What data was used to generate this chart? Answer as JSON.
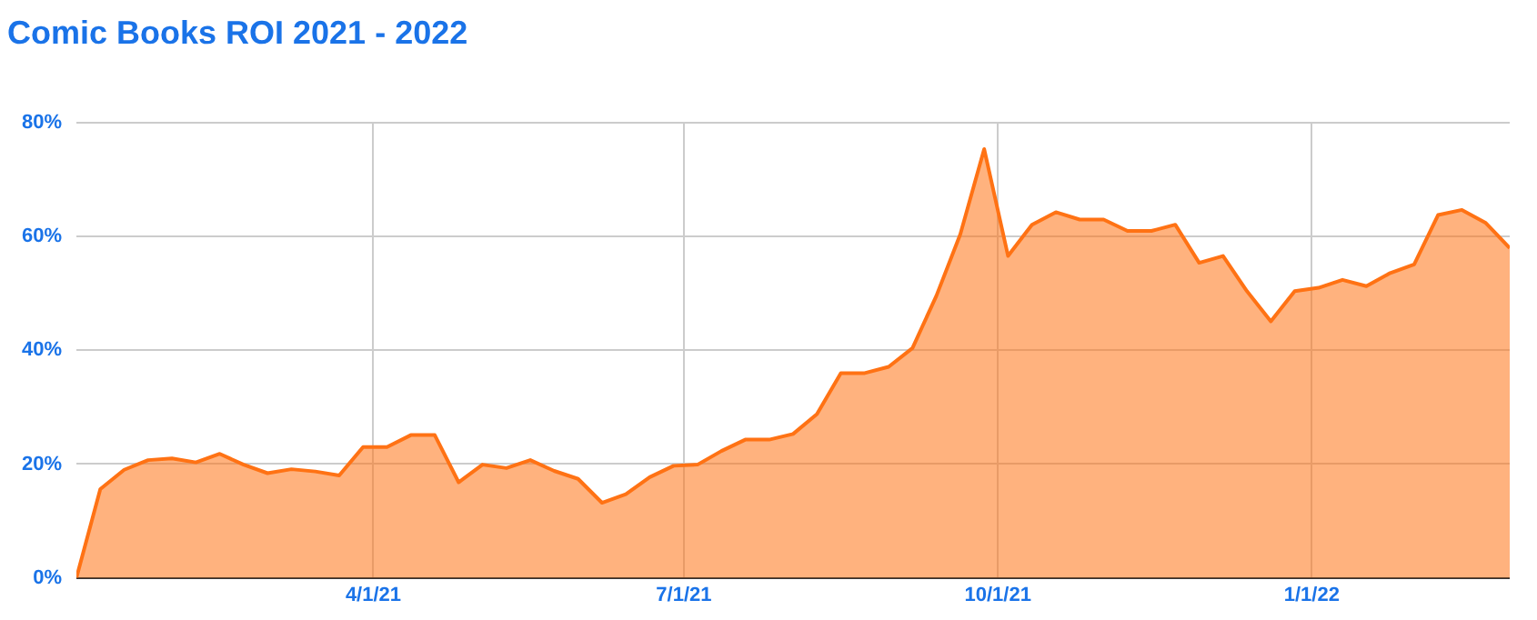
{
  "chart_data": {
    "type": "area",
    "title": "Comic Books ROI 2021 - 2022",
    "x": [
      "2021-01-04",
      "2021-01-11",
      "2021-01-18",
      "2021-01-25",
      "2021-02-01",
      "2021-02-08",
      "2021-02-15",
      "2021-02-22",
      "2021-03-01",
      "2021-03-08",
      "2021-03-15",
      "2021-03-22",
      "2021-03-29",
      "2021-04-05",
      "2021-04-12",
      "2021-04-19",
      "2021-04-26",
      "2021-05-03",
      "2021-05-10",
      "2021-05-17",
      "2021-05-24",
      "2021-05-31",
      "2021-06-07",
      "2021-06-14",
      "2021-06-21",
      "2021-06-28",
      "2021-07-05",
      "2021-07-12",
      "2021-07-19",
      "2021-07-26",
      "2021-08-02",
      "2021-08-09",
      "2021-08-16",
      "2021-08-23",
      "2021-08-30",
      "2021-09-06",
      "2021-09-13",
      "2021-09-20",
      "2021-09-27",
      "2021-10-04",
      "2021-10-11",
      "2021-10-18",
      "2021-10-25",
      "2021-11-01",
      "2021-11-08",
      "2021-11-15",
      "2021-11-22",
      "2021-11-29",
      "2021-12-06",
      "2021-12-13",
      "2021-12-20",
      "2021-12-27",
      "2022-01-03",
      "2022-01-10",
      "2022-01-17",
      "2022-01-24",
      "2022-01-31",
      "2022-02-07",
      "2022-02-14",
      "2022-02-21",
      "2022-02-28"
    ],
    "series": [
      {
        "color": "#ff7214",
        "values": [
          0,
          15.6,
          19,
          20.7,
          21,
          20.3,
          21.8,
          19.9,
          18.4,
          19.1,
          18.7,
          18,
          23,
          23,
          25.1,
          25.1,
          16.8,
          19.9,
          19.3,
          20.7,
          18.8,
          17.4,
          13.2,
          14.7,
          17.7,
          19.7,
          19.9,
          22.3,
          24.3,
          24.3,
          25.3,
          28.8,
          36,
          36,
          37.1,
          40.4,
          49.6,
          60.4,
          75.4,
          56.6,
          62.1,
          64.3,
          63,
          63,
          61,
          61,
          62.1,
          55.4,
          56.6,
          50.4,
          45.1,
          50.4,
          51,
          52.4,
          51.3,
          53.6,
          55.1,
          63.8,
          64.7,
          62.4,
          58
        ]
      }
    ],
    "xlim": [
      "2021-01-04",
      "2022-02-28"
    ],
    "xticks": [
      {
        "value": "2021-04-01",
        "label": "4/1/21"
      },
      {
        "value": "2021-07-01",
        "label": "7/1/21"
      },
      {
        "value": "2021-10-01",
        "label": "10/1/21"
      },
      {
        "value": "2022-01-01",
        "label": "1/1/22"
      }
    ],
    "ylim": [
      0,
      80
    ],
    "yticks": [
      {
        "value": 0,
        "label": "0%"
      },
      {
        "value": 20,
        "label": "20%"
      },
      {
        "value": 40,
        "label": "40%"
      },
      {
        "value": 60,
        "label": "60%"
      },
      {
        "value": 80,
        "label": "80%"
      }
    ],
    "grid": true,
    "legend": false,
    "marker": "none",
    "line_style": "solid"
  }
}
